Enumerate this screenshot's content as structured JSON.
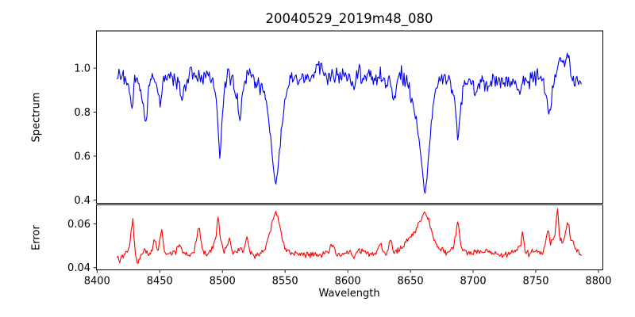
{
  "figure": {
    "title": "20040529_2019m48_080",
    "xlabel": "Wavelength",
    "background": "#ffffff",
    "frame_color": "#000000"
  },
  "axes_shared_x": {
    "xlim": [
      8399.5,
      8803.5
    ],
    "xticks": {
      "values": [
        8400,
        8450,
        8500,
        8550,
        8600,
        8650,
        8700,
        8750,
        8800
      ],
      "labels": [
        "8400",
        "8450",
        "8500",
        "8550",
        "8600",
        "8650",
        "8700",
        "8750",
        "8800"
      ]
    }
  },
  "chart_data": [
    {
      "type": "line",
      "series_name": "spectrum",
      "title": "20040529_2019m48_080",
      "xlabel": "Wavelength",
      "ylabel": "Spectrum",
      "line_color": "#0000ee",
      "grid": false,
      "legend": null,
      "xlim": [
        8399.5,
        8803.5
      ],
      "ylim": [
        0.385,
        1.17
      ],
      "yticks": {
        "values": [
          0.4,
          0.6,
          0.8,
          1.0
        ],
        "labels": [
          "0.4",
          "0.6",
          "0.8",
          "1.0"
        ]
      },
      "x_range": [
        8416,
        8786.5
      ],
      "sample_step": 0.7,
      "noise": {
        "seed": 20040529,
        "fine_amp": 0.05,
        "coarse_amp": 0.028,
        "coarse_period": 6,
        "ref": 1.0,
        "floor": 0.3
      },
      "anchors": [
        [
          8416,
          0.97
        ],
        [
          8419,
          0.96
        ],
        [
          8422,
          0.95
        ],
        [
          8425,
          0.93
        ],
        [
          8428,
          0.8
        ],
        [
          8430,
          0.95
        ],
        [
          8433,
          0.94
        ],
        [
          8436,
          0.89
        ],
        [
          8439,
          0.74
        ],
        [
          8441,
          0.91
        ],
        [
          8444,
          0.95
        ],
        [
          8447,
          0.94
        ],
        [
          8450.5,
          0.82
        ],
        [
          8453,
          0.94
        ],
        [
          8456,
          0.96
        ],
        [
          8459,
          0.96
        ],
        [
          8462,
          0.95
        ],
        [
          8465,
          0.92
        ],
        [
          8468,
          0.85
        ],
        [
          8470,
          0.93
        ],
        [
          8473,
          0.96
        ],
        [
          8476,
          0.97
        ],
        [
          8480,
          0.96
        ],
        [
          8484,
          0.96
        ],
        [
          8488,
          0.96
        ],
        [
          8492,
          0.95
        ],
        [
          8494,
          0.91
        ],
        [
          8496,
          0.78
        ],
        [
          8498,
          0.575
        ],
        [
          8500,
          0.78
        ],
        [
          8502,
          0.91
        ],
        [
          8505,
          0.95
        ],
        [
          8508,
          0.95
        ],
        [
          8511,
          0.89
        ],
        [
          8514,
          0.76
        ],
        [
          8516.5,
          0.91
        ],
        [
          8520,
          0.95
        ],
        [
          8524,
          0.96
        ],
        [
          8528,
          0.94
        ],
        [
          8532,
          0.89
        ],
        [
          8535,
          0.83
        ],
        [
          8538,
          0.72
        ],
        [
          8540.5,
          0.55
        ],
        [
          8542.5,
          0.467
        ],
        [
          8544.5,
          0.55
        ],
        [
          8547,
          0.7
        ],
        [
          8549.5,
          0.82
        ],
        [
          8552,
          0.9
        ],
        [
          8555,
          0.94
        ],
        [
          8558,
          0.95
        ],
        [
          8562,
          0.96
        ],
        [
          8566,
          0.97
        ],
        [
          8570,
          0.97
        ],
        [
          8574,
          1.0
        ],
        [
          8576,
          1.02
        ],
        [
          8579,
          0.99
        ],
        [
          8582,
          0.95
        ],
        [
          8585,
          0.97
        ],
        [
          8589,
          0.97
        ],
        [
          8593,
          0.96
        ],
        [
          8597,
          0.95
        ],
        [
          8601,
          0.96
        ],
        [
          8605,
          0.94
        ],
        [
          8609,
          0.96
        ],
        [
          8613,
          0.94
        ],
        [
          8617,
          0.96
        ],
        [
          8621,
          0.93
        ],
        [
          8625,
          0.96
        ],
        [
          8629,
          0.95
        ],
        [
          8633,
          0.93
        ],
        [
          8637,
          0.87
        ],
        [
          8640,
          0.98
        ],
        [
          8642,
          1.01
        ],
        [
          8645,
          0.94
        ],
        [
          8648,
          0.91
        ],
        [
          8651,
          0.87
        ],
        [
          8654,
          0.8
        ],
        [
          8657,
          0.68
        ],
        [
          8659.5,
          0.53
        ],
        [
          8661.5,
          0.42
        ],
        [
          8663.5,
          0.52
        ],
        [
          8666,
          0.7
        ],
        [
          8668.5,
          0.84
        ],
        [
          8671,
          0.91
        ],
        [
          8674,
          0.94
        ],
        [
          8678,
          0.95
        ],
        [
          8681,
          0.94
        ],
        [
          8684,
          0.91
        ],
        [
          8686.5,
          0.77
        ],
        [
          8688,
          0.65
        ],
        [
          8690,
          0.8
        ],
        [
          8692.5,
          0.92
        ],
        [
          8696,
          0.95
        ],
        [
          8700,
          0.92
        ],
        [
          8702,
          0.85
        ],
        [
          8704,
          0.93
        ],
        [
          8708,
          0.95
        ],
        [
          8712,
          0.94
        ],
        [
          8716,
          0.95
        ],
        [
          8720,
          0.94
        ],
        [
          8724,
          0.95
        ],
        [
          8728,
          0.95
        ],
        [
          8732,
          0.94
        ],
        [
          8736,
          0.9
        ],
        [
          8739,
          0.94
        ],
        [
          8743,
          0.95
        ],
        [
          8747,
          0.95
        ],
        [
          8751,
          0.95
        ],
        [
          8754,
          0.94
        ],
        [
          8757,
          0.92
        ],
        [
          8760.5,
          0.81
        ],
        [
          8763,
          0.9
        ],
        [
          8766,
          0.96
        ],
        [
          8769,
          1.0
        ],
        [
          8772,
          1.03
        ],
        [
          8775,
          1.06
        ],
        [
          8777.5,
          1.0
        ],
        [
          8780,
          0.96
        ],
        [
          8783,
          0.94
        ],
        [
          8786.5,
          0.95
        ]
      ]
    },
    {
      "type": "line",
      "series_name": "error",
      "title": "",
      "xlabel": "Wavelength",
      "ylabel": "Error",
      "line_color": "#ff0000",
      "grid": false,
      "legend": null,
      "xlim": [
        8399.5,
        8803.5
      ],
      "ylim": [
        0.039,
        0.0687
      ],
      "yticks": {
        "values": [
          0.04,
          0.06
        ],
        "labels": [
          "0.04",
          "0.06"
        ]
      },
      "x_range": [
        8416,
        8786.5
      ],
      "sample_step": 0.7,
      "noise": {
        "seed": 2019048,
        "fine_amp": 0.0017,
        "coarse_amp": 0.0011,
        "coarse_period": 6,
        "ref": 0.04,
        "floor": 1.0
      },
      "anchors": [
        [
          8416,
          0.045
        ],
        [
          8418,
          0.044
        ],
        [
          8420,
          0.0455
        ],
        [
          8423,
          0.0465
        ],
        [
          8426,
          0.0495
        ],
        [
          8428.5,
          0.0625
        ],
        [
          8430.5,
          0.045
        ],
        [
          8432.5,
          0.0415
        ],
        [
          8435,
          0.0465
        ],
        [
          8438,
          0.0485
        ],
        [
          8441,
          0.0465
        ],
        [
          8443.5,
          0.047
        ],
        [
          8446,
          0.0545
        ],
        [
          8448.5,
          0.0468
        ],
        [
          8451.5,
          0.0575
        ],
        [
          8454,
          0.0465
        ],
        [
          8457,
          0.0455
        ],
        [
          8460,
          0.0465
        ],
        [
          8463,
          0.0478
        ],
        [
          8465.5,
          0.051
        ],
        [
          8468,
          0.0478
        ],
        [
          8471,
          0.0458
        ],
        [
          8474,
          0.0455
        ],
        [
          8477,
          0.0468
        ],
        [
          8480,
          0.056
        ],
        [
          8481.5,
          0.06
        ],
        [
          8483.5,
          0.048
        ],
        [
          8486,
          0.0465
        ],
        [
          8489,
          0.047
        ],
        [
          8492,
          0.048
        ],
        [
          8494.5,
          0.052
        ],
        [
          8496.5,
          0.064
        ],
        [
          8498.5,
          0.053
        ],
        [
          8501,
          0.0478
        ],
        [
          8504,
          0.05
        ],
        [
          8505.5,
          0.0548
        ],
        [
          8507.5,
          0.047
        ],
        [
          8511,
          0.0478
        ],
        [
          8514,
          0.0488
        ],
        [
          8517,
          0.0468
        ],
        [
          8519.5,
          0.0548
        ],
        [
          8522,
          0.0465
        ],
        [
          8525,
          0.0458
        ],
        [
          8528,
          0.0465
        ],
        [
          8531,
          0.0472
        ],
        [
          8534,
          0.049
        ],
        [
          8537,
          0.0548
        ],
        [
          8539.5,
          0.061
        ],
        [
          8542,
          0.0665
        ],
        [
          8544,
          0.0648
        ],
        [
          8546.5,
          0.057
        ],
        [
          8549,
          0.0505
        ],
        [
          8552,
          0.0472
        ],
        [
          8555,
          0.046
        ],
        [
          8558,
          0.0465
        ],
        [
          8561,
          0.0468
        ],
        [
          8564,
          0.0462
        ],
        [
          8567,
          0.0465
        ],
        [
          8570,
          0.0458
        ],
        [
          8573,
          0.0465
        ],
        [
          8576,
          0.047
        ],
        [
          8579,
          0.0462
        ],
        [
          8582,
          0.0468
        ],
        [
          8585,
          0.047
        ],
        [
          8588,
          0.052
        ],
        [
          8590.5,
          0.0465
        ],
        [
          8593,
          0.046
        ],
        [
          8596,
          0.0465
        ],
        [
          8599,
          0.0462
        ],
        [
          8602,
          0.0468
        ],
        [
          8605,
          0.0462
        ],
        [
          8608,
          0.047
        ],
        [
          8611,
          0.0475
        ],
        [
          8614,
          0.0465
        ],
        [
          8617,
          0.046
        ],
        [
          8620,
          0.0468
        ],
        [
          8623,
          0.047
        ],
        [
          8626,
          0.0515
        ],
        [
          8628.5,
          0.0472
        ],
        [
          8631,
          0.0468
        ],
        [
          8634,
          0.0528
        ],
        [
          8636.5,
          0.0478
        ],
        [
          8639,
          0.0482
        ],
        [
          8642,
          0.049
        ],
        [
          8645,
          0.0505
        ],
        [
          8648,
          0.052
        ],
        [
          8651,
          0.0548
        ],
        [
          8654,
          0.0578
        ],
        [
          8657,
          0.0612
        ],
        [
          8659.5,
          0.0645
        ],
        [
          8661.5,
          0.0658
        ],
        [
          8663.5,
          0.063
        ],
        [
          8666,
          0.0585
        ],
        [
          8669,
          0.053
        ],
        [
          8672,
          0.0495
        ],
        [
          8675,
          0.0478
        ],
        [
          8678,
          0.047
        ],
        [
          8681,
          0.0475
        ],
        [
          8684,
          0.0495
        ],
        [
          8686.5,
          0.056
        ],
        [
          8688,
          0.0622
        ],
        [
          8690,
          0.05
        ],
        [
          8693,
          0.0472
        ],
        [
          8696,
          0.0465
        ],
        [
          8699,
          0.0462
        ],
        [
          8702,
          0.0475
        ],
        [
          8705,
          0.0465
        ],
        [
          8708,
          0.0468
        ],
        [
          8711,
          0.0472
        ],
        [
          8714,
          0.0462
        ],
        [
          8717,
          0.0468
        ],
        [
          8720,
          0.0465
        ],
        [
          8723,
          0.0458
        ],
        [
          8726,
          0.0462
        ],
        [
          8729,
          0.0468
        ],
        [
          8732,
          0.0472
        ],
        [
          8735,
          0.048
        ],
        [
          8738,
          0.05
        ],
        [
          8739.5,
          0.058
        ],
        [
          8741.5,
          0.0475
        ],
        [
          8744,
          0.047
        ],
        [
          8747,
          0.0478
        ],
        [
          8750,
          0.0482
        ],
        [
          8753,
          0.0475
        ],
        [
          8756,
          0.048
        ],
        [
          8758.5,
          0.053
        ],
        [
          8760,
          0.057
        ],
        [
          8761.5,
          0.0505
        ],
        [
          8763.5,
          0.052
        ],
        [
          8765.5,
          0.0545
        ],
        [
          8767.3,
          0.0678
        ],
        [
          8769,
          0.0545
        ],
        [
          8771,
          0.0515
        ],
        [
          8773,
          0.054
        ],
        [
          8775.5,
          0.0625
        ],
        [
          8777.5,
          0.0545
        ],
        [
          8779.5,
          0.051
        ],
        [
          8781.5,
          0.049
        ],
        [
          8784,
          0.0472
        ],
        [
          8786.5,
          0.0452
        ]
      ]
    }
  ]
}
